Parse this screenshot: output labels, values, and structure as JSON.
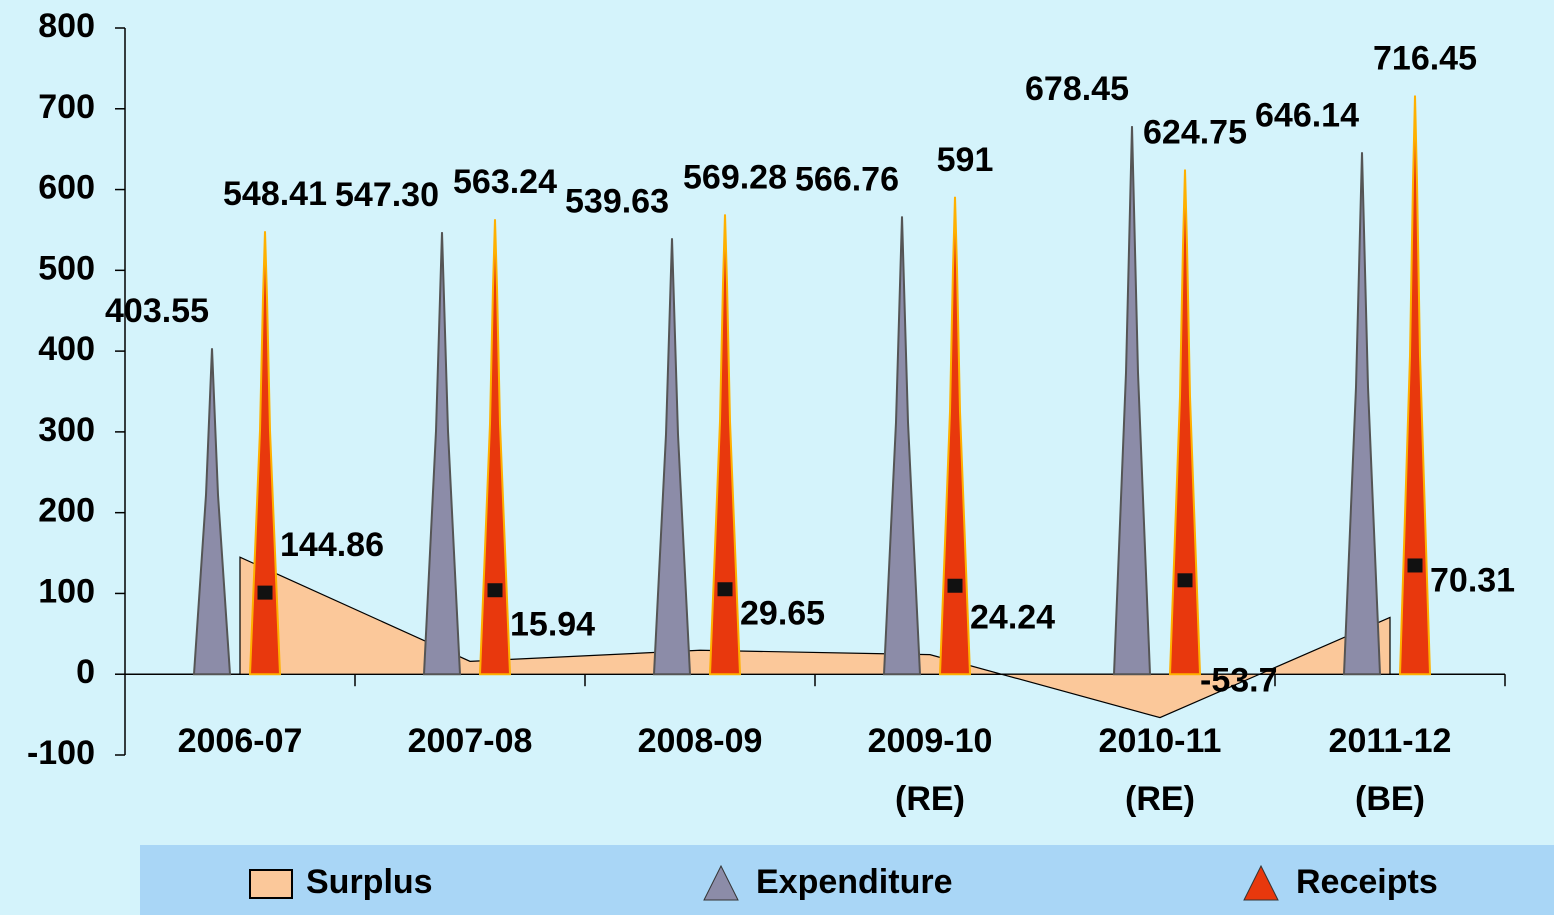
{
  "chart_data": {
    "type": "bar-area",
    "categories": [
      "2006-07",
      "2007-08",
      "2008-09",
      "2009-10 (RE)",
      "2010-11 (RE)",
      "2011-12 (BE)"
    ],
    "series": [
      {
        "name": "Surplus",
        "type": "area",
        "color": "#fbc89a",
        "values": [
          144.86,
          15.94,
          29.65,
          24.24,
          -53.7,
          70.31
        ]
      },
      {
        "name": "Expenditure",
        "type": "bar",
        "color": "#8c8ca8",
        "values": [
          403.55,
          547.3,
          539.63,
          566.76,
          678.45,
          646.14
        ],
        "value_labels": [
          "403.55",
          "547.30",
          "539.63",
          "566.76",
          "678.45",
          "646.14"
        ]
      },
      {
        "name": "Receipts",
        "type": "bar",
        "color": "#e8380d",
        "values": [
          548.41,
          563.24,
          569.28,
          591,
          624.75,
          716.45
        ]
      }
    ],
    "ylim": [
      -100,
      800
    ],
    "yticks": [
      -100,
      0,
      100,
      200,
      300,
      400,
      500,
      600,
      700,
      800
    ],
    "legend": "bottom"
  }
}
